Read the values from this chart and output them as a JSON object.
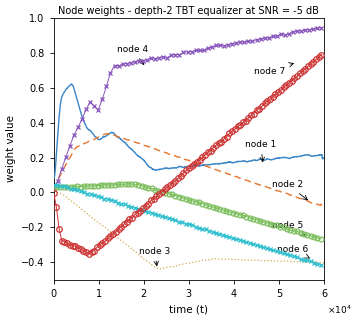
{
  "title": "Node weights - depth-2 TBT equalizer at SNR = -5 dB",
  "xlabel": "time (t)",
  "ylabel": "weight value",
  "xlim": [
    0,
    60000
  ],
  "ylim": [
    -0.5,
    1.0
  ],
  "xtick_vals": [
    0,
    10000,
    20000,
    30000,
    40000,
    50000,
    60000
  ],
  "xtick_labels": [
    "0",
    "1",
    "2",
    "3",
    "4",
    "5",
    "6"
  ],
  "node1_color": "#3a86c8",
  "node2_color": "#e87830",
  "node3_color": "#d4aa50",
  "node4_color": "#8855bb",
  "node5_color": "#7abd5a",
  "node6_color": "#30bfcf",
  "node7_color": "#cc3333",
  "n_points": 1200,
  "max_t": 60000
}
